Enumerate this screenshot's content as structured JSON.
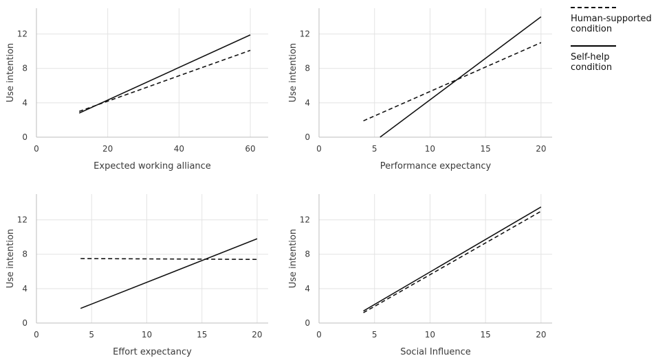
{
  "legend": [
    {
      "label": "Human-supported\ncondition",
      "style": "dashed"
    },
    {
      "label": "Self-help\ncondition",
      "style": "solid"
    }
  ],
  "chart_data": [
    {
      "type": "line",
      "xlabel": "Expected working alliance",
      "ylabel": "Use intention",
      "xlim": [
        0,
        65
      ],
      "ylim": [
        0,
        15
      ],
      "xticks": [
        0,
        20,
        40,
        60
      ],
      "yticks": [
        0,
        4,
        8,
        12
      ],
      "grid": true,
      "series": [
        {
          "style": "dashed",
          "x": [
            12,
            60
          ],
          "y": [
            3.0,
            10.1
          ]
        },
        {
          "style": "solid",
          "x": [
            12,
            60
          ],
          "y": [
            2.8,
            11.9
          ]
        }
      ]
    },
    {
      "type": "line",
      "xlabel": "Performance expectancy",
      "ylabel": "Use intention",
      "xlim": [
        0,
        21
      ],
      "ylim": [
        0,
        15
      ],
      "xticks": [
        0,
        5,
        10,
        15,
        20
      ],
      "yticks": [
        0,
        4,
        8,
        12
      ],
      "grid": true,
      "series": [
        {
          "style": "dashed",
          "x": [
            4,
            20
          ],
          "y": [
            1.9,
            11.0
          ]
        },
        {
          "style": "solid",
          "x": [
            5.5,
            20
          ],
          "y": [
            0.0,
            14.0
          ]
        }
      ]
    },
    {
      "type": "line",
      "xlabel": "Effort expectancy",
      "ylabel": "Use intention",
      "xlim": [
        0,
        21
      ],
      "ylim": [
        0,
        15
      ],
      "xticks": [
        0,
        5,
        10,
        15,
        20
      ],
      "yticks": [
        0,
        4,
        8,
        12
      ],
      "grid": true,
      "series": [
        {
          "style": "dashed",
          "x": [
            4,
            20
          ],
          "y": [
            7.5,
            7.4
          ]
        },
        {
          "style": "solid",
          "x": [
            4,
            20
          ],
          "y": [
            1.7,
            9.8
          ]
        }
      ]
    },
    {
      "type": "line",
      "xlabel": "Social Influence",
      "ylabel": "Use intention",
      "xlim": [
        0,
        21
      ],
      "ylim": [
        0,
        15
      ],
      "xticks": [
        0,
        5,
        10,
        15,
        20
      ],
      "yticks": [
        0,
        4,
        8,
        12
      ],
      "grid": true,
      "series": [
        {
          "style": "dashed",
          "x": [
            4,
            20
          ],
          "y": [
            1.2,
            13.0
          ]
        },
        {
          "style": "solid",
          "x": [
            4,
            20
          ],
          "y": [
            1.4,
            13.5
          ]
        }
      ]
    }
  ]
}
